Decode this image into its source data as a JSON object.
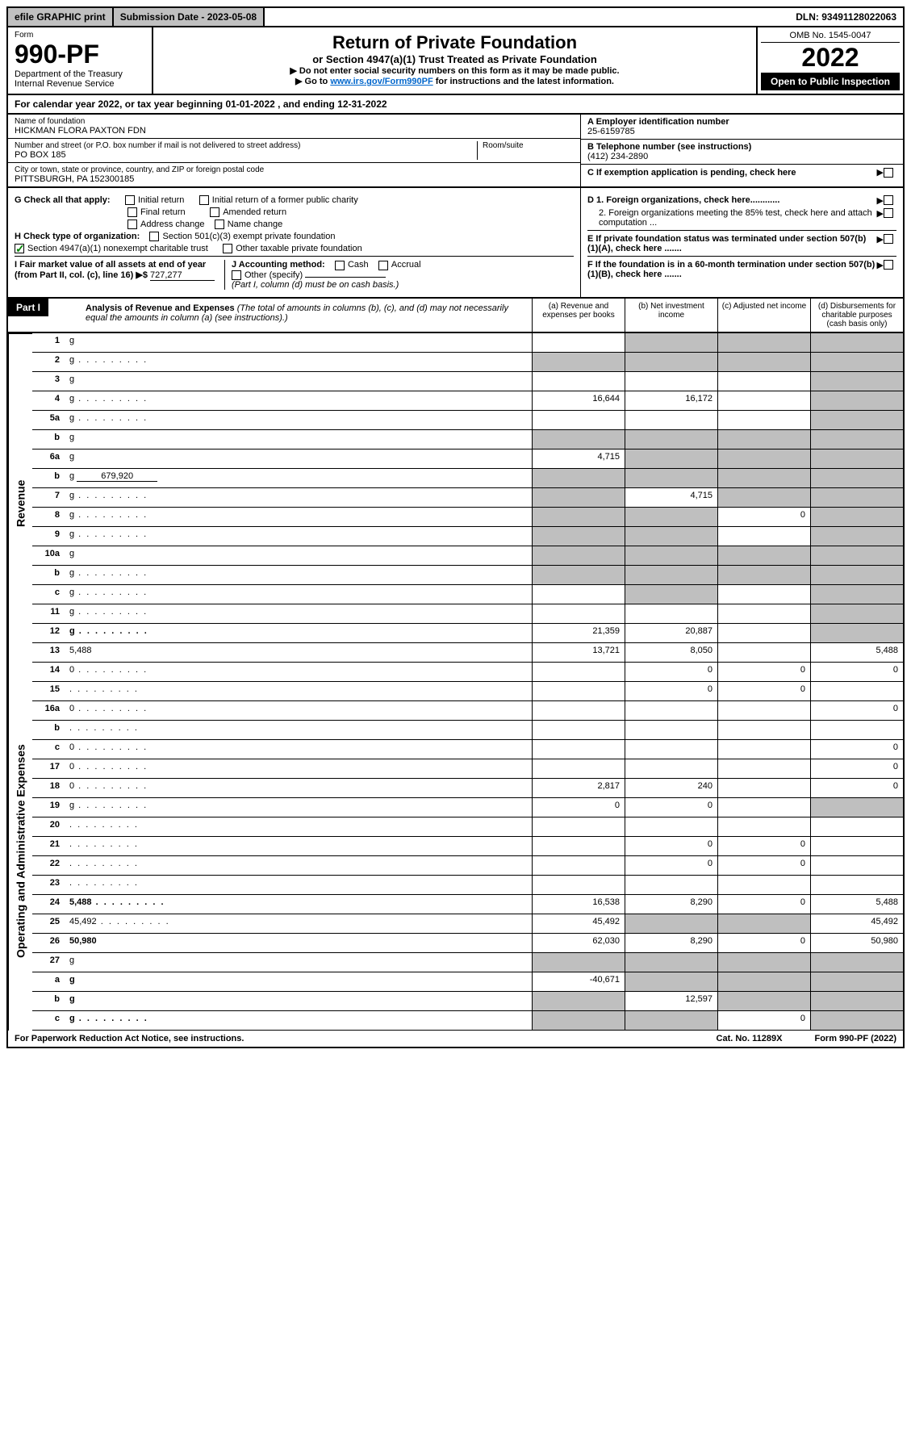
{
  "top": {
    "efile": "efile GRAPHIC print",
    "sub_date_label": "Submission Date - 2023-05-08",
    "dln": "DLN: 93491128022063"
  },
  "header": {
    "form_word": "Form",
    "form_num": "990-PF",
    "dept1": "Department of the Treasury",
    "dept2": "Internal Revenue Service",
    "title": "Return of Private Foundation",
    "subtitle": "or Section 4947(a)(1) Trust Treated as Private Foundation",
    "instr1": "▶ Do not enter social security numbers on this form as it may be made public.",
    "instr2_pre": "▶ Go to ",
    "instr2_link": "www.irs.gov/Form990PF",
    "instr2_post": " for instructions and the latest information.",
    "omb": "OMB No. 1545-0047",
    "year": "2022",
    "open_pub": "Open to Public Inspection"
  },
  "cal_year": "For calendar year 2022, or tax year beginning 01-01-2022                            , and ending 12-31-2022",
  "entity": {
    "name_label": "Name of foundation",
    "name": "HICKMAN FLORA PAXTON FDN",
    "addr_label": "Number and street (or P.O. box number if mail is not delivered to street address)",
    "room_label": "Room/suite",
    "addr": "PO BOX 185",
    "city_label": "City or town, state or province, country, and ZIP or foreign postal code",
    "city": "PITTSBURGH, PA  152300185",
    "a_label": "A Employer identification number",
    "a_val": "25-6159785",
    "b_label": "B Telephone number (see instructions)",
    "b_val": "(412) 234-2890",
    "c_label": "C If exemption application is pending, check here"
  },
  "checks": {
    "g_label": "G Check all that apply:",
    "g_opts": [
      "Initial return",
      "Initial return of a former public charity",
      "Final return",
      "Amended return",
      "Address change",
      "Name change"
    ],
    "h_label": "H Check type of organization:",
    "h_opt1": "Section 501(c)(3) exempt private foundation",
    "h_opt2": "Section 4947(a)(1) nonexempt charitable trust",
    "h_opt3": "Other taxable private foundation",
    "i_label": "I Fair market value of all assets at end of year (from Part II, col. (c), line 16) ▶$",
    "i_val": "727,277",
    "j_label": "J Accounting method:",
    "j_cash": "Cash",
    "j_accrual": "Accrual",
    "j_other": "Other (specify)",
    "j_note": "(Part I, column (d) must be on cash basis.)",
    "d1": "D 1. Foreign organizations, check here............",
    "d2": "2. Foreign organizations meeting the 85% test, check here and attach computation ...",
    "e": "E  If private foundation status was terminated under section 507(b)(1)(A), check here .......",
    "f": "F  If the foundation is in a 60-month termination under section 507(b)(1)(B), check here .......",
    "arrow": "▶"
  },
  "part1": {
    "part_label": "Part I",
    "title": "Analysis of Revenue and Expenses",
    "note": " (The total of amounts in columns (b), (c), and (d) may not necessarily equal the amounts in column (a) (see instructions).)",
    "col_a": "(a)  Revenue and expenses per books",
    "col_b": "(b)  Net investment income",
    "col_c": "(c)  Adjusted net income",
    "col_d": "(d)  Disbursements for charitable purposes (cash basis only)"
  },
  "side_labels": {
    "revenue": "Revenue",
    "expenses": "Operating and Administrative Expenses"
  },
  "rows": [
    {
      "n": "1",
      "d": "g",
      "a": "",
      "b": "g",
      "c": "g"
    },
    {
      "n": "2",
      "d": "g",
      "dots": true,
      "a": "g",
      "b": "g",
      "c": "g"
    },
    {
      "n": "3",
      "d": "g",
      "a": "",
      "b": "",
      "c": ""
    },
    {
      "n": "4",
      "d": "g",
      "dots": true,
      "a": "16,644",
      "b": "16,172",
      "c": ""
    },
    {
      "n": "5a",
      "d": "g",
      "dots": true,
      "a": "",
      "b": "",
      "c": ""
    },
    {
      "n": "b",
      "d": "g",
      "a": "g",
      "b": "g",
      "c": "g"
    },
    {
      "n": "6a",
      "d": "g",
      "a": "4,715",
      "b": "g",
      "c": "g"
    },
    {
      "n": "b",
      "d": "g",
      "inline": "679,920",
      "a": "g",
      "b": "g",
      "c": "g"
    },
    {
      "n": "7",
      "d": "g",
      "dots": true,
      "a": "g",
      "b": "4,715",
      "c": "g"
    },
    {
      "n": "8",
      "d": "g",
      "dots": true,
      "a": "g",
      "b": "g",
      "c": "0"
    },
    {
      "n": "9",
      "d": "g",
      "dots": true,
      "a": "g",
      "b": "g",
      "c": ""
    },
    {
      "n": "10a",
      "d": "g",
      "a": "g",
      "b": "g",
      "c": "g"
    },
    {
      "n": "b",
      "d": "g",
      "dots": true,
      "a": "g",
      "b": "g",
      "c": "g"
    },
    {
      "n": "c",
      "d": "g",
      "dots": true,
      "a": "",
      "b": "g",
      "c": ""
    },
    {
      "n": "11",
      "d": "g",
      "dots": true,
      "a": "",
      "b": "",
      "c": ""
    },
    {
      "n": "12",
      "d": "g",
      "dots": true,
      "bold": true,
      "a": "21,359",
      "b": "20,887",
      "c": ""
    },
    {
      "n": "13",
      "d": "5,488",
      "a": "13,721",
      "b": "8,050",
      "c": ""
    },
    {
      "n": "14",
      "d": "0",
      "dots": true,
      "a": "",
      "b": "0",
      "c": "0"
    },
    {
      "n": "15",
      "d": "",
      "dots": true,
      "a": "",
      "b": "0",
      "c": "0"
    },
    {
      "n": "16a",
      "d": "0",
      "dots": true,
      "a": "",
      "b": "",
      "c": ""
    },
    {
      "n": "b",
      "d": "",
      "dots": true,
      "a": "",
      "b": "",
      "c": ""
    },
    {
      "n": "c",
      "d": "0",
      "dots": true,
      "a": "",
      "b": "",
      "c": ""
    },
    {
      "n": "17",
      "d": "0",
      "dots": true,
      "a": "",
      "b": "",
      "c": ""
    },
    {
      "n": "18",
      "d": "0",
      "dots": true,
      "a": "2,817",
      "b": "240",
      "c": ""
    },
    {
      "n": "19",
      "d": "g",
      "dots": true,
      "a": "0",
      "b": "0",
      "c": ""
    },
    {
      "n": "20",
      "d": "",
      "dots": true,
      "a": "",
      "b": "",
      "c": ""
    },
    {
      "n": "21",
      "d": "",
      "dots": true,
      "a": "",
      "b": "0",
      "c": "0"
    },
    {
      "n": "22",
      "d": "",
      "dots": true,
      "a": "",
      "b": "0",
      "c": "0"
    },
    {
      "n": "23",
      "d": "",
      "dots": true,
      "a": "",
      "b": "",
      "c": ""
    },
    {
      "n": "24",
      "d": "5,488",
      "dots": true,
      "bold": true,
      "a": "16,538",
      "b": "8,290",
      "c": "0"
    },
    {
      "n": "25",
      "d": "45,492",
      "dots": true,
      "a": "45,492",
      "b": "g",
      "c": "g"
    },
    {
      "n": "26",
      "d": "50,980",
      "bold": true,
      "a": "62,030",
      "b": "8,290",
      "c": "0"
    },
    {
      "n": "27",
      "d": "g",
      "a": "g",
      "b": "g",
      "c": "g"
    },
    {
      "n": "a",
      "d": "g",
      "bold": true,
      "a": "-40,671",
      "b": "g",
      "c": "g"
    },
    {
      "n": "b",
      "d": "g",
      "bold": true,
      "a": "g",
      "b": "12,597",
      "c": "g"
    },
    {
      "n": "c",
      "d": "g",
      "dots": true,
      "bold": true,
      "a": "g",
      "b": "g",
      "c": "0"
    }
  ],
  "footer": {
    "left": "For Paperwork Reduction Act Notice, see instructions.",
    "mid": "Cat. No. 11289X",
    "right": "Form 990-PF (2022)"
  },
  "colors": {
    "grey": "#bfbfbf",
    "black": "#000000",
    "link": "#0066cc",
    "green": "#008000"
  }
}
